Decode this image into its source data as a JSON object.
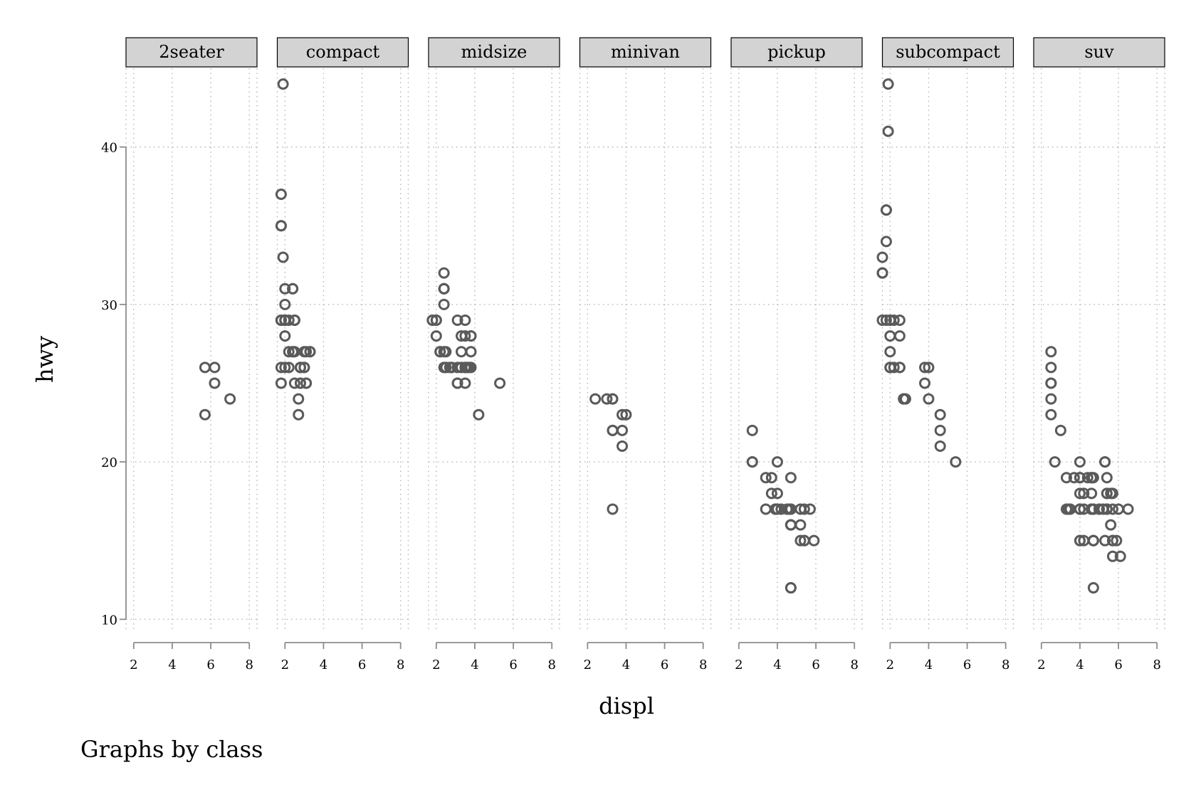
{
  "chart_data": {
    "type": "scatter",
    "xlabel": "displ",
    "ylabel": "hwy",
    "note": "Graphs by class",
    "xlim": [
      1.6,
      8.4
    ],
    "ylim": [
      9.2,
      45.0
    ],
    "x_ticks": [
      2,
      4,
      6,
      8
    ],
    "y_ticks": [
      10,
      20,
      30,
      40
    ],
    "grid": true,
    "marker": "hollow-circle",
    "marker_color": "#5a5a5a",
    "strip_fill": "#d3d3d3",
    "axis_color": "#8c8c8c",
    "panels": [
      {
        "name": "2seater",
        "points": [
          [
            5.7,
            26
          ],
          [
            5.7,
            23
          ],
          [
            6.2,
            26
          ],
          [
            6.2,
            25
          ],
          [
            7.0,
            24
          ]
        ]
      },
      {
        "name": "compact",
        "points": [
          [
            1.8,
            29
          ],
          [
            1.8,
            29
          ],
          [
            2.0,
            31
          ],
          [
            2.0,
            30
          ],
          [
            2.8,
            26
          ],
          [
            2.8,
            26
          ],
          [
            3.1,
            27
          ],
          [
            1.8,
            26
          ],
          [
            1.8,
            25
          ],
          [
            2.0,
            28
          ],
          [
            2.0,
            29
          ],
          [
            2.8,
            25
          ],
          [
            2.8,
            25
          ],
          [
            3.1,
            25
          ],
          [
            3.1,
            25
          ],
          [
            2.2,
            27
          ],
          [
            2.2,
            29
          ],
          [
            2.4,
            31
          ],
          [
            2.4,
            31
          ],
          [
            3.0,
            26
          ],
          [
            3.0,
            26
          ],
          [
            3.3,
            27
          ],
          [
            1.8,
            29
          ],
          [
            1.8,
            35
          ],
          [
            1.8,
            37
          ],
          [
            1.8,
            35
          ],
          [
            1.8,
            29
          ],
          [
            2.0,
            26
          ],
          [
            2.0,
            29
          ],
          [
            2.5,
            29
          ],
          [
            2.5,
            29
          ],
          [
            2.7,
            24
          ],
          [
            2.7,
            23
          ],
          [
            1.9,
            44
          ],
          [
            1.9,
            33
          ],
          [
            2.0,
            29
          ],
          [
            2.0,
            29
          ],
          [
            2.4,
            27
          ],
          [
            2.4,
            27
          ],
          [
            2.5,
            25
          ],
          [
            2.5,
            29
          ],
          [
            2.8,
            26
          ],
          [
            3.0,
            27
          ],
          [
            3.3,
            27
          ],
          [
            2.2,
            26
          ],
          [
            2.5,
            27
          ]
        ]
      },
      {
        "name": "midsize",
        "points": [
          [
            2.8,
            26
          ],
          [
            3.1,
            25
          ],
          [
            4.2,
            23
          ],
          [
            2.4,
            31
          ],
          [
            2.4,
            30
          ],
          [
            3.1,
            29
          ],
          [
            3.5,
            26
          ],
          [
            3.6,
            26
          ],
          [
            2.4,
            27
          ],
          [
            2.4,
            26
          ],
          [
            2.5,
            26
          ],
          [
            2.5,
            26
          ],
          [
            3.3,
            28
          ],
          [
            3.3,
            26
          ],
          [
            3.5,
            28
          ],
          [
            3.5,
            26
          ],
          [
            3.8,
            28
          ],
          [
            3.8,
            26
          ],
          [
            3.8,
            27
          ],
          [
            5.3,
            25
          ],
          [
            2.4,
            31
          ],
          [
            2.4,
            32
          ],
          [
            2.4,
            31
          ],
          [
            3.1,
            26
          ],
          [
            3.5,
            25
          ],
          [
            1.8,
            29
          ],
          [
            1.8,
            29
          ],
          [
            2.0,
            28
          ],
          [
            2.0,
            29
          ],
          [
            2.8,
            26
          ],
          [
            3.1,
            25
          ],
          [
            3.3,
            27
          ],
          [
            3.7,
            26
          ],
          [
            2.2,
            27
          ],
          [
            2.5,
            27
          ],
          [
            2.7,
            26
          ],
          [
            3.5,
            29
          ],
          [
            3.8,
            28
          ],
          [
            2.0,
            29
          ],
          [
            2.2,
            27
          ]
        ]
      },
      {
        "name": "minivan",
        "points": [
          [
            2.4,
            24
          ],
          [
            3.0,
            24
          ],
          [
            3.3,
            22
          ],
          [
            3.3,
            22
          ],
          [
            3.3,
            24
          ],
          [
            3.3,
            24
          ],
          [
            3.3,
            17
          ],
          [
            3.8,
            22
          ],
          [
            3.8,
            21
          ],
          [
            3.8,
            23
          ],
          [
            4.0,
            23
          ]
        ]
      },
      {
        "name": "pickup",
        "points": [
          [
            2.7,
            20
          ],
          [
            2.7,
            20
          ],
          [
            2.7,
            22
          ],
          [
            3.4,
            17
          ],
          [
            3.4,
            19
          ],
          [
            3.7,
            19
          ],
          [
            3.7,
            18
          ],
          [
            3.9,
            17
          ],
          [
            3.9,
            17
          ],
          [
            4.0,
            20
          ],
          [
            4.0,
            17
          ],
          [
            4.2,
            17
          ],
          [
            4.6,
            17
          ],
          [
            4.7,
            12
          ],
          [
            4.7,
            12
          ],
          [
            4.7,
            16
          ],
          [
            4.7,
            16
          ],
          [
            4.7,
            16
          ],
          [
            4.7,
            17
          ],
          [
            4.7,
            17
          ],
          [
            4.7,
            19
          ],
          [
            5.2,
            15
          ],
          [
            5.2,
            17
          ],
          [
            5.2,
            16
          ],
          [
            5.4,
            15
          ],
          [
            5.4,
            17
          ],
          [
            5.4,
            15
          ],
          [
            5.7,
            17
          ],
          [
            5.9,
            15
          ],
          [
            4.0,
            18
          ],
          [
            3.9,
            17
          ],
          [
            4.5,
            17
          ],
          [
            4.7,
            16
          ]
        ]
      },
      {
        "name": "subcompact",
        "points": [
          [
            3.8,
            26
          ],
          [
            3.8,
            25
          ],
          [
            4.0,
            26
          ],
          [
            4.0,
            24
          ],
          [
            4.6,
            21
          ],
          [
            4.6,
            22
          ],
          [
            4.6,
            23
          ],
          [
            5.4,
            20
          ],
          [
            1.6,
            33
          ],
          [
            1.6,
            32
          ],
          [
            1.6,
            32
          ],
          [
            1.6,
            29
          ],
          [
            1.6,
            32
          ],
          [
            1.8,
            34
          ],
          [
            1.8,
            36
          ],
          [
            1.8,
            36
          ],
          [
            2.0,
            29
          ],
          [
            1.9,
            44
          ],
          [
            1.9,
            41
          ],
          [
            2.0,
            29
          ],
          [
            2.0,
            26
          ],
          [
            2.0,
            28
          ],
          [
            2.0,
            27
          ],
          [
            2.0,
            26
          ],
          [
            2.5,
            26
          ],
          [
            2.5,
            26
          ],
          [
            2.5,
            28
          ],
          [
            2.5,
            29
          ],
          [
            2.7,
            24
          ],
          [
            2.7,
            24
          ],
          [
            2.2,
            29
          ],
          [
            2.2,
            26
          ],
          [
            2.0,
            26
          ],
          [
            2.8,
            24
          ],
          [
            1.8,
            29
          ]
        ]
      },
      {
        "name": "suv",
        "points": [
          [
            5.3,
            20
          ],
          [
            5.3,
            15
          ],
          [
            5.3,
            20
          ],
          [
            5.7,
            17
          ],
          [
            6.0,
            17
          ],
          [
            5.7,
            18
          ],
          [
            6.5,
            17
          ],
          [
            4.7,
            12
          ],
          [
            4.7,
            17
          ],
          [
            5.2,
            17
          ],
          [
            5.7,
            15
          ],
          [
            5.9,
            15
          ],
          [
            4.7,
            19
          ],
          [
            4.6,
            18
          ],
          [
            5.4,
            19
          ],
          [
            4.6,
            17
          ],
          [
            5.4,
            17
          ],
          [
            4.0,
            15
          ],
          [
            4.0,
            20
          ],
          [
            4.0,
            17
          ],
          [
            4.0,
            19
          ],
          [
            4.6,
            17
          ],
          [
            5.0,
            17
          ],
          [
            4.2,
            18
          ],
          [
            4.2,
            17
          ],
          [
            4.6,
            19
          ],
          [
            4.6,
            19
          ],
          [
            5.4,
            17
          ],
          [
            5.4,
            18
          ],
          [
            3.3,
            19
          ],
          [
            3.3,
            17
          ],
          [
            4.0,
            19
          ],
          [
            4.0,
            17
          ],
          [
            4.7,
            15
          ],
          [
            4.7,
            15
          ],
          [
            5.7,
            15
          ],
          [
            6.1,
            14
          ],
          [
            4.0,
            17
          ],
          [
            4.2,
            15
          ],
          [
            4.4,
            19
          ],
          [
            4.6,
            19
          ],
          [
            5.4,
            17
          ],
          [
            5.4,
            17
          ],
          [
            5.4,
            18
          ],
          [
            4.0,
            19
          ],
          [
            4.0,
            18
          ],
          [
            4.6,
            17
          ],
          [
            5.0,
            17
          ],
          [
            5.6,
            18
          ],
          [
            3.7,
            19
          ],
          [
            4.7,
            17
          ],
          [
            5.6,
            16
          ],
          [
            3.5,
            17
          ],
          [
            3.4,
            17
          ],
          [
            4.0,
            15
          ],
          [
            4.7,
            17
          ],
          [
            4.7,
            15
          ],
          [
            5.7,
            14
          ],
          [
            2.5,
            25
          ],
          [
            2.5,
            25
          ],
          [
            2.5,
            27
          ],
          [
            2.5,
            24
          ],
          [
            2.5,
            26
          ],
          [
            2.5,
            23
          ],
          [
            2.7,
            20
          ],
          [
            3.0,
            22
          ]
        ]
      }
    ]
  }
}
